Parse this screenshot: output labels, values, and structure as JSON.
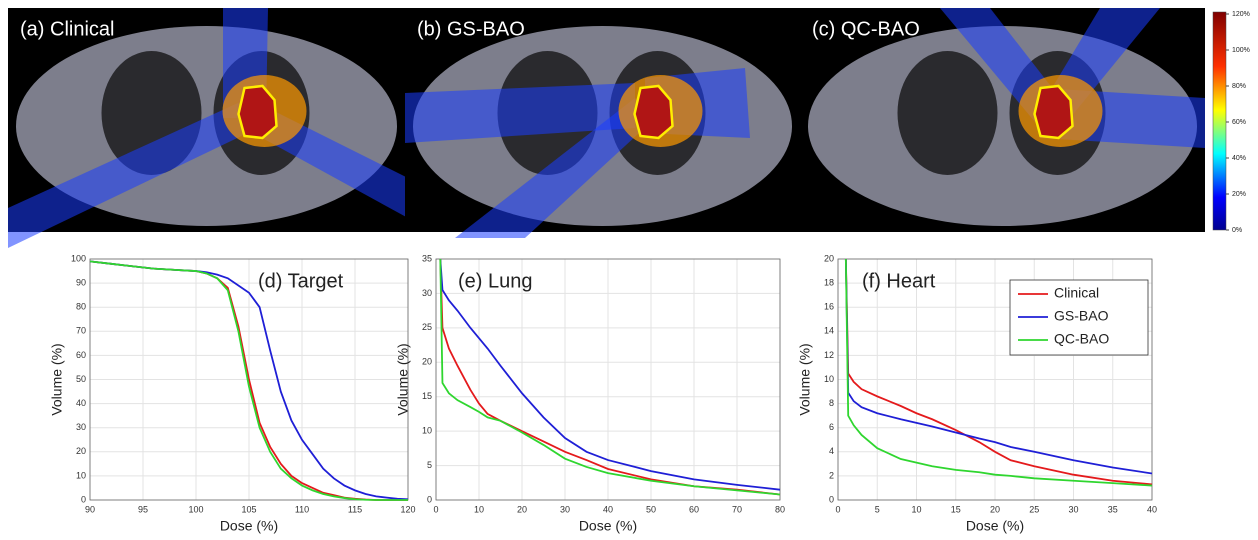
{
  "images": [
    {
      "label": "(a) Clinical"
    },
    {
      "label": "(b) GS-BAO"
    },
    {
      "label": "(c) QC-BAO"
    }
  ],
  "colorbar": {
    "ticks": [
      {
        "value": 0,
        "label": "0%"
      },
      {
        "value": 20,
        "label": "20%"
      },
      {
        "value": 40,
        "label": "40%"
      },
      {
        "value": 60,
        "label": "60%"
      },
      {
        "value": 80,
        "label": "80%"
      },
      {
        "value": 100,
        "label": "100%"
      },
      {
        "value": 120,
        "label": "120%"
      }
    ]
  },
  "chart_data": [
    {
      "type": "line",
      "title": "(d) Target",
      "x_label": "Dose (%)",
      "y_label": "Volume (%)",
      "grid": true,
      "x": [
        90,
        92,
        94,
        96,
        98,
        100,
        101,
        102,
        103,
        104,
        105,
        106,
        107,
        108,
        109,
        110,
        111,
        112,
        113,
        114,
        115,
        116,
        117,
        118,
        119,
        120
      ],
      "xlim": [
        90,
        120
      ],
      "xticks": [
        90,
        95,
        100,
        105,
        110,
        115,
        120
      ],
      "ylim": [
        0,
        100
      ],
      "yticks": [
        0,
        10,
        20,
        30,
        40,
        50,
        60,
        70,
        80,
        90,
        100
      ],
      "series": [
        {
          "color": "#e41a1c",
          "values": [
            99,
            98,
            97,
            96,
            95.5,
            95,
            94,
            92,
            88,
            72,
            50,
            32,
            22,
            15,
            10,
            7,
            5,
            3,
            2,
            1,
            0.5,
            0.2,
            0,
            0,
            0,
            0
          ]
        },
        {
          "color": "#1f1fd6",
          "values": [
            99,
            98,
            97,
            96,
            95.5,
            95,
            94.5,
            93.5,
            92,
            89,
            86,
            80,
            62,
            45,
            33,
            25,
            19,
            13,
            9,
            6,
            4,
            2.5,
            1.5,
            1,
            0.5,
            0.3
          ]
        },
        {
          "color": "#2fd62f",
          "values": [
            99,
            98,
            97,
            96,
            95.5,
            95,
            94,
            92,
            87,
            70,
            47,
            30,
            20,
            13,
            9,
            6,
            4,
            2.5,
            1.5,
            0.8,
            0.3,
            0.1,
            0,
            0,
            0,
            0
          ]
        }
      ]
    },
    {
      "type": "line",
      "title": "(e) Lung",
      "x_label": "Dose (%)",
      "y_label": "Volume (%)",
      "grid": true,
      "x": [
        1,
        1.5,
        3,
        5,
        8,
        10,
        12,
        15,
        20,
        25,
        30,
        35,
        40,
        50,
        60,
        70,
        80
      ],
      "xlim": [
        0,
        80
      ],
      "xticks": [
        0,
        10,
        20,
        30,
        40,
        50,
        60,
        70,
        80
      ],
      "ylim": [
        0,
        35
      ],
      "yticks": [
        0,
        5,
        10,
        15,
        20,
        25,
        30,
        35
      ],
      "series": [
        {
          "color": "#e41a1c",
          "values": [
            35,
            25,
            22,
            19.5,
            16,
            14,
            12.5,
            11.5,
            10,
            8.5,
            7,
            5.8,
            4.5,
            3,
            2,
            1.5,
            0.8
          ]
        },
        {
          "color": "#1f1fd6",
          "values": [
            35,
            30.5,
            29,
            27.5,
            25,
            23.5,
            22,
            19.5,
            15.5,
            12,
            9,
            7,
            5.8,
            4.2,
            3,
            2.2,
            1.5
          ]
        },
        {
          "color": "#2fd62f",
          "values": [
            35,
            17,
            15.5,
            14.5,
            13.5,
            12.8,
            12,
            11.5,
            9.8,
            8,
            6,
            4.8,
            3.9,
            2.8,
            2,
            1.4,
            0.8
          ]
        }
      ]
    },
    {
      "type": "line",
      "title": "(f) Heart",
      "x_label": "Dose (%)",
      "y_label": "Volume (%)",
      "grid": true,
      "legend": "upper right",
      "x": [
        1,
        1.3,
        2,
        3,
        5,
        8,
        10,
        12,
        15,
        18,
        20,
        22,
        25,
        30,
        35,
        40
      ],
      "xlim": [
        0,
        40
      ],
      "xticks": [
        0,
        5,
        10,
        15,
        20,
        25,
        30,
        35,
        40
      ],
      "ylim": [
        0,
        20
      ],
      "yticks": [
        0,
        2,
        4,
        6,
        8,
        10,
        12,
        14,
        16,
        18,
        20
      ],
      "series": [
        {
          "name": "Clinical",
          "color": "#e41a1c",
          "values": [
            20,
            10.5,
            9.8,
            9.2,
            8.6,
            7.8,
            7.2,
            6.7,
            5.8,
            4.8,
            4,
            3.3,
            2.8,
            2.1,
            1.6,
            1.3
          ]
        },
        {
          "name": "GS-BAO",
          "color": "#1f1fd6",
          "values": [
            20,
            8.9,
            8.2,
            7.7,
            7.2,
            6.7,
            6.4,
            6.1,
            5.6,
            5.1,
            4.8,
            4.4,
            4,
            3.3,
            2.7,
            2.2
          ]
        },
        {
          "name": "QC-BAO",
          "color": "#2fd62f",
          "values": [
            20,
            7,
            6.2,
            5.4,
            4.3,
            3.4,
            3.1,
            2.8,
            2.5,
            2.3,
            2.1,
            2,
            1.8,
            1.6,
            1.4,
            1.2
          ]
        }
      ]
    }
  ]
}
